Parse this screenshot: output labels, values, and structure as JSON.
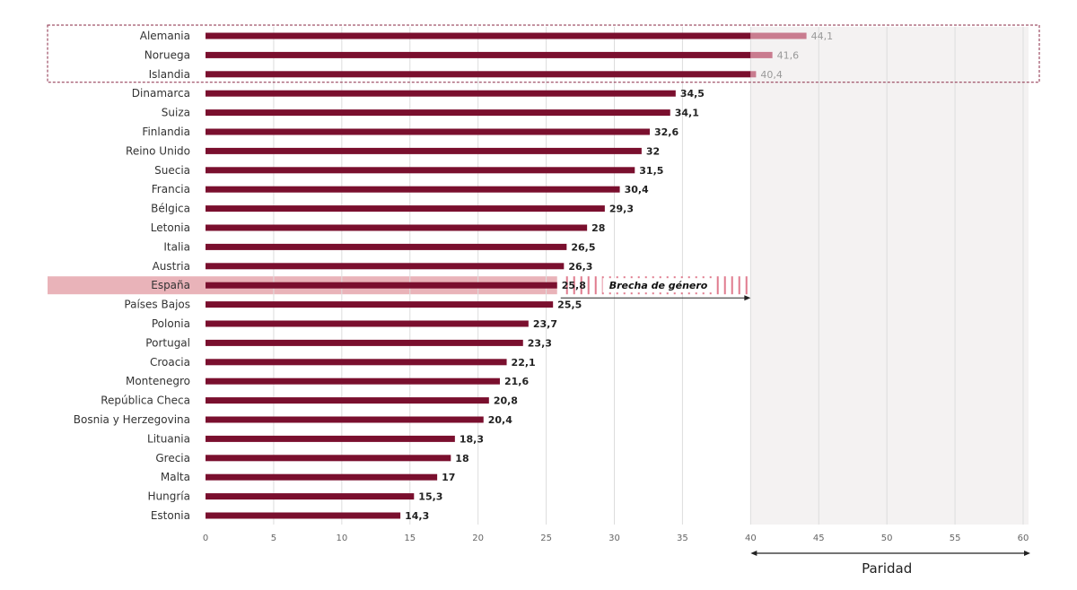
{
  "chart_data": {
    "type": "bar",
    "orientation": "horizontal",
    "categories": [
      "Alemania",
      "Noruega",
      "Islandia",
      "Dinamarca",
      "Suiza",
      "Finlandia",
      "Reino Unido",
      "Suecia",
      "Francia",
      "Bélgica",
      "Letonia",
      "Italia",
      "Austria",
      "España",
      "Países Bajos",
      "Polonia",
      "Portugal",
      "Croacia",
      "Montenegro",
      "República Checa",
      "Bosnia y Herzegovina",
      "Lituania",
      "Grecia",
      "Malta",
      "Hungría",
      "Estonia"
    ],
    "values": [
      44.1,
      41.6,
      40.4,
      34.5,
      34.1,
      32.6,
      32,
      31.5,
      30.4,
      29.3,
      28,
      26.5,
      26.3,
      25.8,
      25.5,
      23.7,
      23.3,
      22.1,
      21.6,
      20.8,
      20.4,
      18.3,
      18,
      17,
      15.3,
      14.3
    ],
    "value_labels": [
      "44,1",
      "41,6",
      "40,4",
      "34,5",
      "34,1",
      "32,6",
      "32",
      "31,5",
      "30,4",
      "29,3",
      "28",
      "26,5",
      "26,3",
      "25,8",
      "25,5",
      "23,7",
      "23,3",
      "22,1",
      "21,6",
      "20,8",
      "20,4",
      "18,3",
      "18",
      "17",
      "15,3",
      "14,3"
    ],
    "xlim": [
      0,
      60
    ],
    "xticks": [
      0,
      5,
      10,
      15,
      20,
      25,
      30,
      35,
      40,
      45,
      50,
      55,
      60
    ],
    "grid": true,
    "parity_threshold": 40,
    "parity_label": "Paridad",
    "highlighted_category": "España",
    "boxed_categories": [
      "Alemania",
      "Noruega",
      "Islandia"
    ],
    "gap_annotation": "Brecha de género",
    "colors": {
      "bar": "#7a0f2e",
      "bar_over_parity": "#c97c8f",
      "highlight_band": "#e9b3b9",
      "parity_zone": "#f4f2f2",
      "box_border": "#8a2a46",
      "gap_stripe": "#e07b8e"
    }
  }
}
